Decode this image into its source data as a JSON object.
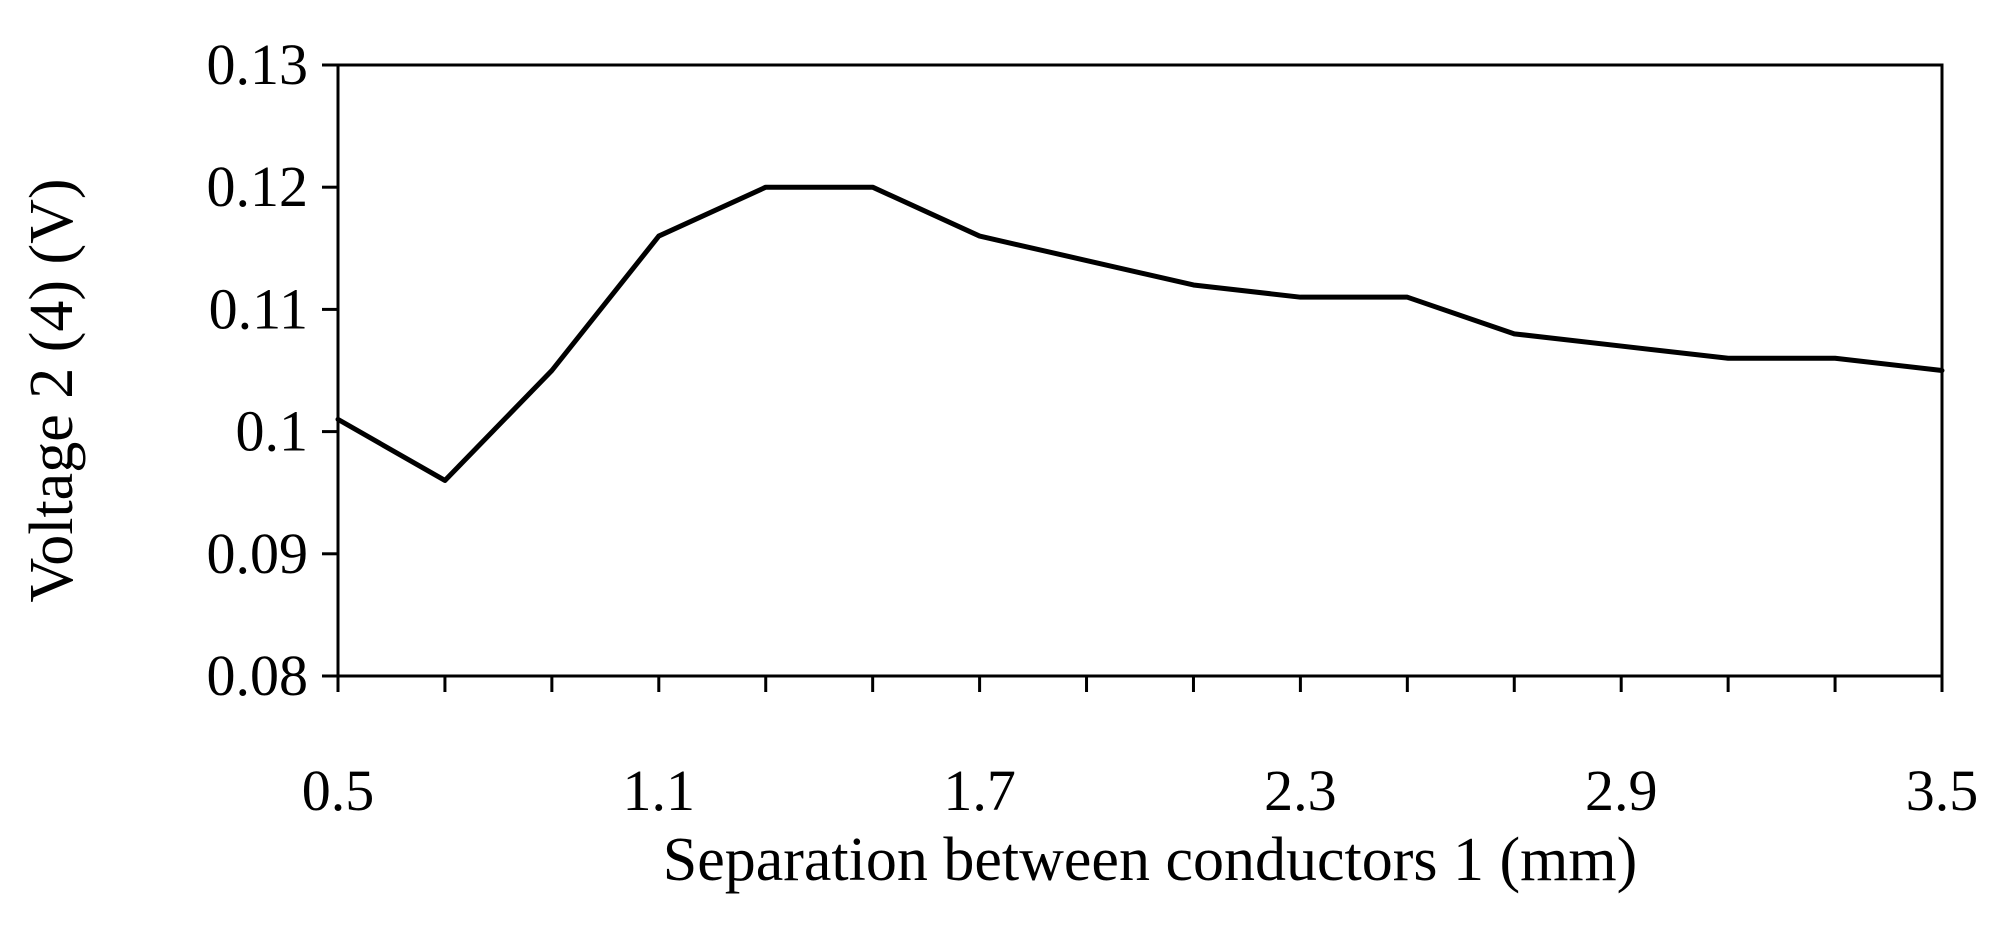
{
  "chart_data": {
    "type": "line",
    "title": "",
    "xlabel": "Separation between conductors 1 (mm)",
    "ylabel": "Voltage 2 (4) (V)",
    "xlim": [
      0.5,
      3.5
    ],
    "ylim": [
      0.08,
      0.13
    ],
    "x_tick_labels": [
      "0.5",
      "1.1",
      "1.7",
      "2.3",
      "2.9",
      "3.5"
    ],
    "y_tick_labels": [
      "0.08",
      "0.09",
      "0.1",
      "0.11",
      "0.12",
      "0.13"
    ],
    "minor_x_ticks": [
      0.5,
      0.7,
      0.9,
      1.1,
      1.3,
      1.5,
      1.7,
      1.9,
      2.1,
      2.3,
      2.5,
      2.7,
      2.9,
      3.1,
      3.3,
      3.5
    ],
    "grid": false,
    "legend": "none",
    "line_color": "#000000",
    "series": [
      {
        "x": [
          0.5,
          0.7,
          0.9,
          1.1,
          1.3,
          1.5,
          1.7,
          1.9,
          2.1,
          2.3,
          2.5,
          2.7,
          2.9,
          3.1,
          3.3,
          3.5
        ],
        "values": [
          0.101,
          0.096,
          0.105,
          0.116,
          0.12,
          0.12,
          0.116,
          0.114,
          0.112,
          0.111,
          0.111,
          0.108,
          0.107,
          0.106,
          0.106,
          0.105
        ]
      }
    ]
  }
}
